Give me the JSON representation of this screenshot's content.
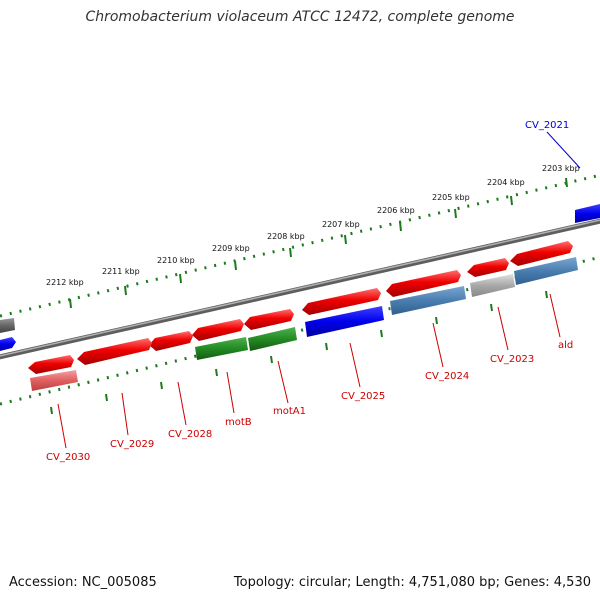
{
  "title": "Chromobacterium violaceum ATCC 12472, complete genome",
  "footer": {
    "accession": "Accession: NC_005085",
    "topology": "Topology: circular; Length: 4,751,080 bp; Genes: 4,530"
  },
  "scale_ticks": [
    "2203 kbp",
    "2204 kbp",
    "2205 kbp",
    "2206 kbp",
    "2207 kbp",
    "2208 kbp",
    "2209 kbp",
    "2210 kbp",
    "2211 kbp",
    "2212 kbp"
  ],
  "gene_labels": [
    "CV_2021",
    "ald",
    "CV_2023",
    "CV_2024",
    "CV_2025",
    "motA1",
    "motB",
    "CV_2028",
    "CV_2029",
    "CV_2030"
  ],
  "colors": {
    "backbone": "#7f7f7f",
    "tick_green": "#1e7a1e",
    "red_gene": "#e00000",
    "blue_gene": "#0000e0",
    "steel_gene": "#4a7eb0",
    "green_gene": "#228b22",
    "gray_gene": "#a0a0a0",
    "pink_gene": "#e06060",
    "label_red": "#cc0000",
    "label_blue": "#0000cc"
  }
}
